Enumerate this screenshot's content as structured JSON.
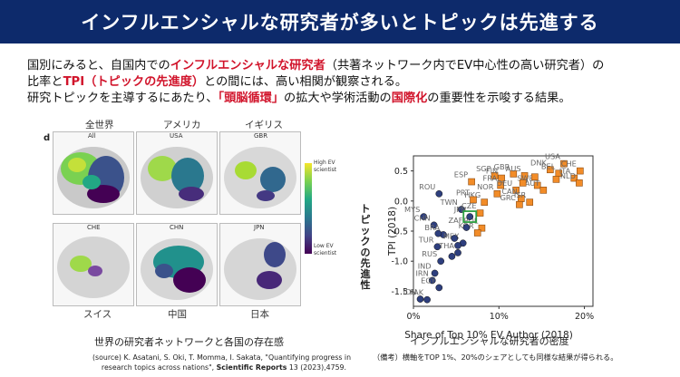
{
  "header": {
    "title": "インフルエンシャルな研究者が多いとトピックは先進する"
  },
  "intro": {
    "l1_a": "国別にみると、自国内での",
    "l1_hl": "インフルエンシャルな研究者",
    "l1_b": "（共著ネットワーク内でEV中心性の高い研究者）の",
    "l2_a": "比率と",
    "l2_hl": "TPI（トピックの先進度）",
    "l2_b": "との間には、高い相関が観察される。",
    "l3_a": "研究トピックを主導するにあたり、",
    "l3_hl1": "「頭脳循環」",
    "l3_b": "の拡大や学術活動の",
    "l3_hl2": "国際化",
    "l3_c": "の重要性を示唆する結果。"
  },
  "maps": {
    "panel_letter": "d",
    "jp_labels": [
      "全世界",
      "アメリカ",
      "イギリス",
      "スイス",
      "中国",
      "日本"
    ],
    "codes": [
      "All",
      "USA",
      "GBR",
      "CHE",
      "CHN",
      "JPN"
    ],
    "legend_high": "High EV scientist",
    "legend_low": "Low EV scientist",
    "caption": "世界の研究者ネットワークと各国の存在感",
    "source_l1": "(source) K. Asatani, S. Oki, T. Momma, I. Sakata, \"Quantifying progress in",
    "source_l2a": "research topics across nations\", ",
    "source_l2b": "Scientific Reports",
    "source_l2c": " 13 (2023),4759."
  },
  "chart": {
    "xcaption": "インフルエンシャルな研究者の密度",
    "note": "（備考）横軸をTOP 1%、20%のシェアとしても同様な結果が得られる。",
    "ylabel_jp": "トピックの先進性"
  },
  "chart_data": {
    "type": "scatter",
    "xlabel": "Share of Top 10% EV Author (2018)",
    "ylabel": "TPI (2018)",
    "xlim": [
      0,
      21
    ],
    "ylim": [
      -1.75,
      0.75
    ],
    "xticks": [
      {
        "v": 0,
        "t": "0%"
      },
      {
        "v": 10,
        "t": "10%"
      },
      {
        "v": 20,
        "t": "20%"
      }
    ],
    "yticks": [
      0.5,
      0.0,
      -0.5,
      -1.0,
      -1.5
    ],
    "series": [
      {
        "name": "high",
        "marker": "square",
        "color": "#f28c28",
        "points": [
          {
            "label": "USA",
            "x": 17.6,
            "y": 0.62
          },
          {
            "label": "CHE",
            "x": 19.5,
            "y": 0.5
          },
          {
            "label": "DNK",
            "x": 16.0,
            "y": 0.52
          },
          {
            "label": "BEL",
            "x": 17.0,
            "y": 0.46
          },
          {
            "label": "ITA",
            "x": 18.8,
            "y": 0.38
          },
          {
            "label": "NLD",
            "x": 19.4,
            "y": 0.3
          },
          {
            "label": "GBR",
            "x": 11.7,
            "y": 0.45
          },
          {
            "label": "SGP",
            "x": 9.5,
            "y": 0.42
          },
          {
            "label": "FIN",
            "x": 10.3,
            "y": 0.38
          },
          {
            "label": "AUS",
            "x": 13.0,
            "y": 0.42
          },
          {
            "label": "SWE",
            "x": 14.5,
            "y": 0.26
          },
          {
            "label": "FRA",
            "x": 10.2,
            "y": 0.26
          },
          {
            "label": "ESP",
            "x": 6.8,
            "y": 0.32
          },
          {
            "label": "DEU",
            "x": 12.0,
            "y": 0.18
          },
          {
            "label": "AUT",
            "x": 15.2,
            "y": 0.18
          },
          {
            "label": "NOR",
            "x": 9.8,
            "y": 0.12
          },
          {
            "label": "CAN",
            "x": 12.6,
            "y": 0.04
          },
          {
            "label": "ISR",
            "x": 13.6,
            "y": -0.02
          },
          {
            "label": "HKG",
            "x": 8.3,
            "y": -0.02
          },
          {
            "label": "PRT",
            "x": 7.0,
            "y": 0.02
          },
          {
            "label": "GRC",
            "x": 12.4,
            "y": -0.06
          },
          {
            "label": "CZE",
            "x": 7.8,
            "y": -0.2
          },
          {
            "label": "POL",
            "x": 8.0,
            "y": -0.45
          },
          {
            "label": "KOR",
            "x": 7.5,
            "y": -0.53
          },
          {
            "label": "",
            "x": 16.7,
            "y": 0.36
          },
          {
            "label": "",
            "x": 14.2,
            "y": 0.4
          },
          {
            "label": "",
            "x": 12.8,
            "y": 0.3
          }
        ]
      },
      {
        "name": "low",
        "marker": "circle",
        "color": "#2e3f7e",
        "points": [
          {
            "label": "ROU",
            "x": 3.0,
            "y": 0.12
          },
          {
            "label": "TWN",
            "x": 5.6,
            "y": -0.14
          },
          {
            "label": "JPN",
            "x": 6.6,
            "y": -0.26
          },
          {
            "label": "MYS",
            "x": 1.2,
            "y": -0.26
          },
          {
            "label": "CHN",
            "x": 2.4,
            "y": -0.4
          },
          {
            "label": "ZAF",
            "x": 6.2,
            "y": -0.44
          },
          {
            "label": "BRA",
            "x": 3.5,
            "y": -0.56
          },
          {
            "label": "MEX",
            "x": 5.8,
            "y": -0.7
          },
          {
            "label": "TUR",
            "x": 2.8,
            "y": -0.76
          },
          {
            "label": "THA",
            "x": 5.2,
            "y": -0.86
          },
          {
            "label": "RUS",
            "x": 3.2,
            "y": -1.0
          },
          {
            "label": "IND",
            "x": 2.5,
            "y": -1.2
          },
          {
            "label": "IRN",
            "x": 2.2,
            "y": -1.32
          },
          {
            "label": "EGY",
            "x": 3.0,
            "y": -1.44
          },
          {
            "label": "IDN",
            "x": 0.8,
            "y": -1.63
          },
          {
            "label": "PAK",
            "x": 1.6,
            "y": -1.64
          },
          {
            "label": "",
            "x": 4.8,
            "y": -0.62
          },
          {
            "label": "",
            "x": 5.2,
            "y": -0.74
          },
          {
            "label": "",
            "x": 4.5,
            "y": -0.92
          },
          {
            "label": "",
            "x": 2.9,
            "y": -0.54
          }
        ]
      }
    ],
    "highlight": {
      "label": "JPN",
      "color": "#2ea043"
    }
  }
}
